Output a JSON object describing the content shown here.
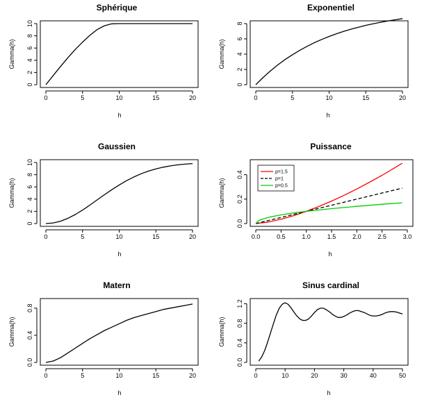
{
  "chart_data": [
    {
      "type": "line",
      "title": "Sphérique",
      "xlabel": "h",
      "ylabel": "Gamma(h)",
      "xlim": [
        0,
        20
      ],
      "ylim": [
        0,
        10
      ],
      "xticks": [
        "0",
        "5",
        "10",
        "15",
        "20"
      ],
      "yticks": [
        "0",
        "2",
        "4",
        "6",
        "8",
        "10"
      ],
      "series": [
        {
          "name": "spherique",
          "color": "#000000",
          "x": [
            0,
            1,
            2,
            3,
            4,
            5,
            6,
            7,
            8,
            9,
            10,
            12,
            14,
            16,
            18,
            20
          ],
          "y": [
            0,
            1.5,
            2.99,
            4.42,
            5.76,
            6.98,
            8.08,
            9.02,
            9.66,
            9.97,
            10,
            10,
            10,
            10,
            10,
            10
          ]
        }
      ]
    },
    {
      "type": "line",
      "title": "Exponentiel",
      "xlabel": "h",
      "ylabel": "Gamma(h)",
      "xlim": [
        0,
        20
      ],
      "ylim": [
        0,
        8
      ],
      "xticks": [
        "0",
        "5",
        "10",
        "15",
        "20"
      ],
      "yticks": [
        "0",
        "2",
        "4",
        "6",
        "8"
      ],
      "series": [
        {
          "name": "exponentiel",
          "color": "#000000",
          "x": [
            0,
            1,
            2,
            3,
            4,
            5,
            6,
            7,
            8,
            9,
            10,
            11,
            12,
            13,
            14,
            15,
            16,
            17,
            18,
            19,
            20
          ],
          "y": [
            0,
            0.95,
            1.81,
            2.59,
            3.3,
            3.93,
            4.51,
            5.03,
            5.51,
            5.93,
            6.32,
            6.67,
            6.99,
            7.27,
            7.53,
            7.77,
            7.98,
            8.17,
            8.35,
            8.5,
            8.65
          ]
        }
      ]
    },
    {
      "type": "line",
      "title": "Gaussien",
      "xlabel": "h",
      "ylabel": "Gamma(h)",
      "xlim": [
        0,
        20
      ],
      "ylim": [
        0,
        10
      ],
      "xticks": [
        "0",
        "5",
        "10",
        "15",
        "20"
      ],
      "yticks": [
        "0",
        "2",
        "4",
        "6",
        "8",
        "10"
      ],
      "series": [
        {
          "name": "gaussien",
          "color": "#000000",
          "x": [
            0,
            1,
            2,
            3,
            4,
            5,
            6,
            7,
            8,
            9,
            10,
            11,
            12,
            13,
            14,
            15,
            16,
            17,
            18,
            19,
            20
          ],
          "y": [
            0,
            0.1,
            0.39,
            0.86,
            1.48,
            2.21,
            3.02,
            3.87,
            4.73,
            5.55,
            6.32,
            7.02,
            7.63,
            8.16,
            8.59,
            8.95,
            9.23,
            9.44,
            9.61,
            9.73,
            9.82
          ]
        }
      ]
    },
    {
      "type": "line",
      "title": "Puissance",
      "xlabel": "h",
      "ylabel": "Gamma(h)",
      "xlim": [
        0,
        3
      ],
      "ylim": [
        0,
        0.5
      ],
      "xticks": [
        "0.0",
        "0.5",
        "1.0",
        "1.5",
        "2.0",
        "2.5",
        "3.0"
      ],
      "yticks": [
        "0.0",
        "0.2",
        "0.4"
      ],
      "legend": {
        "position": "top-left",
        "entries": [
          "p=1.5",
          "p=1",
          "p=0.5"
        ]
      },
      "series": [
        {
          "name": "p=1.5",
          "color": "#ff0000",
          "style": "solid",
          "x": [
            0,
            0.25,
            0.5,
            0.75,
            1.0,
            1.25,
            1.5,
            1.75,
            2.0,
            2.25,
            2.5,
            2.75,
            2.9
          ],
          "y": [
            0,
            0.0125,
            0.035,
            0.065,
            0.1,
            0.14,
            0.184,
            0.232,
            0.283,
            0.338,
            0.395,
            0.456,
            0.494
          ]
        },
        {
          "name": "p=1",
          "color": "#000000",
          "style": "dashed",
          "x": [
            0,
            0.5,
            1.0,
            1.5,
            2.0,
            2.5,
            2.9
          ],
          "y": [
            0,
            0.05,
            0.1,
            0.15,
            0.2,
            0.25,
            0.29
          ]
        },
        {
          "name": "p=0.5",
          "color": "#00cc00",
          "style": "solid",
          "x": [
            0,
            0.05,
            0.1,
            0.2,
            0.3,
            0.5,
            0.75,
            1.0,
            1.5,
            2.0,
            2.5,
            2.9
          ],
          "y": [
            0,
            0.022,
            0.032,
            0.045,
            0.055,
            0.071,
            0.087,
            0.1,
            0.122,
            0.141,
            0.158,
            0.17
          ]
        }
      ]
    },
    {
      "type": "line",
      "title": "Matern",
      "xlabel": "h",
      "ylabel": "Gamma(h)",
      "xlim": [
        0,
        20
      ],
      "ylim": [
        0,
        0.9
      ],
      "xticks": [
        "0",
        "5",
        "10",
        "15",
        "20"
      ],
      "yticks": [
        "0.0",
        "0.4",
        "0.8"
      ],
      "series": [
        {
          "name": "matern",
          "color": "#000000",
          "x": [
            0,
            1,
            2,
            3,
            4,
            5,
            6,
            7,
            8,
            9,
            10,
            11,
            12,
            13,
            14,
            15,
            16,
            17,
            18,
            19,
            20
          ],
          "y": [
            0,
            0.02,
            0.07,
            0.14,
            0.21,
            0.28,
            0.35,
            0.41,
            0.47,
            0.52,
            0.57,
            0.62,
            0.66,
            0.69,
            0.72,
            0.75,
            0.78,
            0.8,
            0.82,
            0.84,
            0.86
          ]
        }
      ]
    },
    {
      "type": "line",
      "title": "Sinus cardinal",
      "xlabel": "h",
      "ylabel": "Gamma(h)",
      "xlim": [
        0,
        50
      ],
      "ylim": [
        0,
        1.25
      ],
      "xticks": [
        "0",
        "10",
        "20",
        "30",
        "40",
        "50"
      ],
      "yticks": [
        "0.0",
        "0.4",
        "0.8",
        "1.2"
      ],
      "series": [
        {
          "name": "sinus-cardinal",
          "color": "#000000",
          "x": [
            1,
            2,
            3,
            4,
            5,
            6,
            7,
            8,
            9,
            10,
            11,
            12,
            13,
            14,
            15,
            16,
            17,
            18,
            19,
            20,
            21,
            22,
            23,
            24,
            25,
            26,
            27,
            28,
            29,
            30,
            31,
            32,
            33,
            34,
            35,
            36,
            37,
            38,
            39,
            40,
            41,
            42,
            43,
            44,
            45,
            46,
            47,
            48,
            49,
            50
          ],
          "y": [
            0.027,
            0.11,
            0.24,
            0.41,
            0.6,
            0.79,
            0.97,
            1.11,
            1.19,
            1.22,
            1.19,
            1.12,
            1.03,
            0.95,
            0.89,
            0.86,
            0.86,
            0.89,
            0.95,
            1.02,
            1.08,
            1.11,
            1.11,
            1.08,
            1.04,
            0.99,
            0.95,
            0.92,
            0.92,
            0.94,
            0.97,
            1.01,
            1.04,
            1.06,
            1.06,
            1.04,
            1.02,
            0.99,
            0.96,
            0.95,
            0.95,
            0.96,
            0.98,
            1.01,
            1.03,
            1.04,
            1.04,
            1.03,
            1.01,
            0.99
          ]
        }
      ]
    }
  ]
}
